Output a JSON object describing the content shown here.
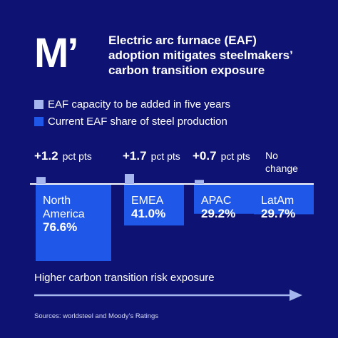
{
  "brand": {
    "logo_text": "M’"
  },
  "header": {
    "title_lines": [
      "Electric arc furnace (EAF)",
      "adoption mitigates steelmakers’",
      "carbon transition exposure"
    ]
  },
  "colors": {
    "background": "#0d1273",
    "light_bar": "#a5b6ee",
    "dark_bar": "#1f57e8",
    "text": "#ffffff"
  },
  "legend": [
    {
      "label": "EAF capacity to be added in five years",
      "color": "#a5b6ee"
    },
    {
      "label": "Current EAF share of steel production",
      "color": "#1f57e8"
    }
  ],
  "chart_data": {
    "type": "bar",
    "categories": [
      "North America",
      "EMEA",
      "APAC",
      "LatAm"
    ],
    "category_label_lines": [
      [
        "North",
        "America"
      ],
      [
        "EMEA"
      ],
      [
        "APAC"
      ],
      [
        "LatAm"
      ]
    ],
    "series": [
      {
        "name": "EAF capacity to be added in five years",
        "values": [
          1.2,
          1.7,
          0.7,
          0
        ],
        "labels": [
          {
            "value": "+1.2",
            "unit": "pct pts"
          },
          {
            "value": "+1.7",
            "unit": "pct pts"
          },
          {
            "value": "+0.7",
            "unit": "pct pts"
          },
          {
            "value": "",
            "unit": "No change"
          }
        ]
      },
      {
        "name": "Current EAF share of steel production",
        "values": [
          76.6,
          41.0,
          29.2,
          29.7
        ],
        "labels": [
          "76.6%",
          "41.0%",
          "29.2%",
          "29.7%"
        ]
      }
    ],
    "annotation": "Higher carbon transition risk exposure"
  },
  "footer": {
    "source": "Sources: worldsteel and Moody’s Ratings"
  }
}
